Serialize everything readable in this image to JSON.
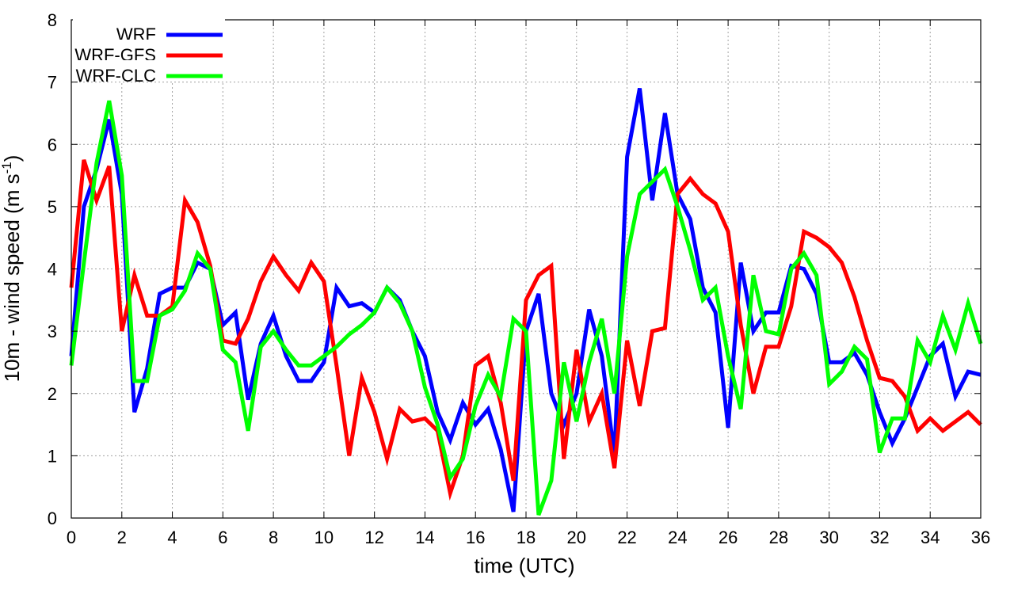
{
  "chart_data": {
    "type": "line",
    "title": "",
    "xlabel": "time (UTC)",
    "ylabel": "10m - wind speed  (m s",
    "ylabel_sup": "-1",
    "ylabel_tail": ")",
    "xlim": [
      0,
      36
    ],
    "ylim": [
      0,
      8
    ],
    "x_ticks": [
      "0",
      "2",
      "4",
      "6",
      "8",
      "10",
      "12",
      "14",
      "16",
      "18",
      "20",
      "22",
      "24",
      "26",
      "28",
      "30",
      "32",
      "34",
      "36"
    ],
    "y_ticks": [
      "0",
      "1",
      "2",
      "3",
      "4",
      "5",
      "6",
      "7",
      "8"
    ],
    "grid": true,
    "legend_position": "top-left",
    "x": [
      0,
      0.5,
      1,
      1.5,
      2,
      2.5,
      3,
      3.5,
      4,
      4.5,
      5,
      5.5,
      6,
      6.5,
      7,
      7.5,
      8,
      8.5,
      9,
      9.5,
      10,
      10.5,
      11,
      11.5,
      12,
      12.5,
      13,
      13.5,
      14,
      14.5,
      15,
      15.5,
      16,
      16.5,
      17,
      17.5,
      18,
      18.5,
      19,
      19.5,
      20,
      20.5,
      21,
      21.5,
      22,
      22.5,
      23,
      23.5,
      24,
      24.5,
      25,
      25.5,
      26,
      26.5,
      27,
      27.5,
      28,
      28.5,
      29,
      29.5,
      30,
      30.5,
      31,
      31.5,
      32,
      32.5,
      33,
      33.5,
      34,
      34.5,
      35,
      35.5,
      36
    ],
    "series": [
      {
        "name": "WRF",
        "color": "#0000ff",
        "values": [
          2.6,
          5.0,
          5.6,
          6.4,
          5.2,
          1.7,
          2.4,
          3.6,
          3.7,
          3.7,
          4.1,
          4.0,
          3.1,
          3.3,
          1.9,
          2.8,
          3.25,
          2.6,
          2.2,
          2.2,
          2.5,
          3.7,
          3.4,
          3.45,
          3.3,
          3.7,
          3.5,
          3.0,
          2.6,
          1.7,
          1.25,
          1.85,
          1.5,
          1.75,
          1.1,
          0.1,
          3.0,
          3.6,
          2.0,
          1.5,
          2.0,
          3.35,
          2.6,
          1.0,
          5.8,
          6.9,
          5.1,
          6.5,
          5.2,
          4.8,
          3.7,
          3.3,
          1.45,
          4.1,
          3.0,
          3.3,
          3.3,
          4.05,
          4.0,
          3.6,
          2.5,
          2.5,
          2.65,
          2.3,
          1.7,
          1.2,
          1.6,
          2.1,
          2.6,
          2.8,
          1.95,
          2.35,
          2.3
        ]
      },
      {
        "name": "WRF-GFS",
        "color": "#ff0000",
        "values": [
          3.7,
          5.75,
          5.1,
          5.65,
          3.0,
          3.9,
          3.25,
          3.25,
          3.4,
          5.1,
          4.75,
          4.05,
          2.85,
          2.8,
          3.2,
          3.8,
          4.2,
          3.9,
          3.65,
          4.1,
          3.8,
          2.45,
          1.0,
          2.25,
          1.7,
          0.95,
          1.75,
          1.55,
          1.6,
          1.4,
          0.4,
          1.0,
          2.45,
          2.6,
          1.85,
          0.6,
          3.5,
          3.9,
          4.05,
          0.95,
          2.7,
          1.55,
          2.0,
          0.8,
          2.85,
          1.8,
          3.0,
          3.05,
          5.2,
          5.45,
          5.2,
          5.05,
          4.6,
          3.1,
          2.0,
          2.75,
          2.75,
          3.4,
          4.6,
          4.5,
          4.35,
          4.1,
          3.55,
          2.85,
          2.25,
          2.2,
          1.95,
          1.4,
          1.6,
          1.4,
          1.55,
          1.7,
          1.5
        ]
      },
      {
        "name": "WRF-CLC",
        "color": "#00ff00",
        "values": [
          2.45,
          4.1,
          5.7,
          6.7,
          5.5,
          2.2,
          2.2,
          3.25,
          3.35,
          3.65,
          4.25,
          4.0,
          2.7,
          2.5,
          1.4,
          2.75,
          3.0,
          2.7,
          2.45,
          2.45,
          2.6,
          2.75,
          2.95,
          3.1,
          3.3,
          3.7,
          3.45,
          3.0,
          2.1,
          1.5,
          0.65,
          0.95,
          1.8,
          2.3,
          1.95,
          3.2,
          3.0,
          0.05,
          0.6,
          2.5,
          1.55,
          2.5,
          3.2,
          2.0,
          4.2,
          5.2,
          5.4,
          5.6,
          5.0,
          4.3,
          3.5,
          3.7,
          2.6,
          1.75,
          3.9,
          3.0,
          2.95,
          4.0,
          4.25,
          3.9,
          2.15,
          2.35,
          2.75,
          2.55,
          1.05,
          1.6,
          1.6,
          2.85,
          2.5,
          3.25,
          2.7,
          3.45,
          2.8
        ]
      }
    ]
  }
}
